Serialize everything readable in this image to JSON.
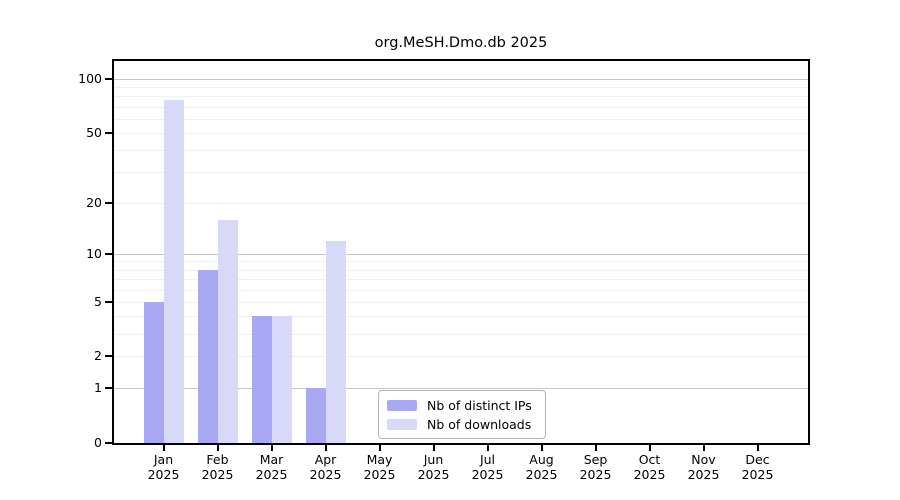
{
  "title": "org.MeSH.Dmo.db 2025",
  "chart_data": {
    "type": "bar",
    "title": "org.MeSH.Dmo.db 2025",
    "categories": [
      {
        "month": "Jan",
        "year": "2025"
      },
      {
        "month": "Feb",
        "year": "2025"
      },
      {
        "month": "Mar",
        "year": "2025"
      },
      {
        "month": "Apr",
        "year": "2025"
      },
      {
        "month": "May",
        "year": "2025"
      },
      {
        "month": "Jun",
        "year": "2025"
      },
      {
        "month": "Jul",
        "year": "2025"
      },
      {
        "month": "Aug",
        "year": "2025"
      },
      {
        "month": "Sep",
        "year": "2025"
      },
      {
        "month": "Oct",
        "year": "2025"
      },
      {
        "month": "Nov",
        "year": "2025"
      },
      {
        "month": "Dec",
        "year": "2025"
      }
    ],
    "series": [
      {
        "name": "Nb of distinct IPs",
        "color": "#a8a8f3",
        "values": [
          5,
          8,
          4,
          1,
          0,
          0,
          0,
          0,
          0,
          0,
          0,
          0
        ]
      },
      {
        "name": "Nb of downloads",
        "color": "#d8d8f9",
        "values": [
          76,
          16,
          4,
          12,
          0,
          0,
          0,
          0,
          0,
          0,
          0,
          0
        ]
      }
    ],
    "y_scale": "log1p",
    "y_tick_labels": [
      "0",
      "1",
      "2",
      "5",
      "10",
      "20",
      "50",
      "100"
    ],
    "y_tick_values": [
      0,
      1,
      2,
      5,
      10,
      20,
      50,
      100
    ],
    "y_major_gridlines": [
      1,
      10,
      100
    ],
    "y_minor_gridlines": [
      2,
      3,
      4,
      5,
      6,
      7,
      8,
      9,
      20,
      30,
      40,
      50,
      60,
      70,
      80,
      90
    ],
    "ylim": [
      0,
      128
    ],
    "grid": "horizontal",
    "legend_position": "bottom-center"
  }
}
